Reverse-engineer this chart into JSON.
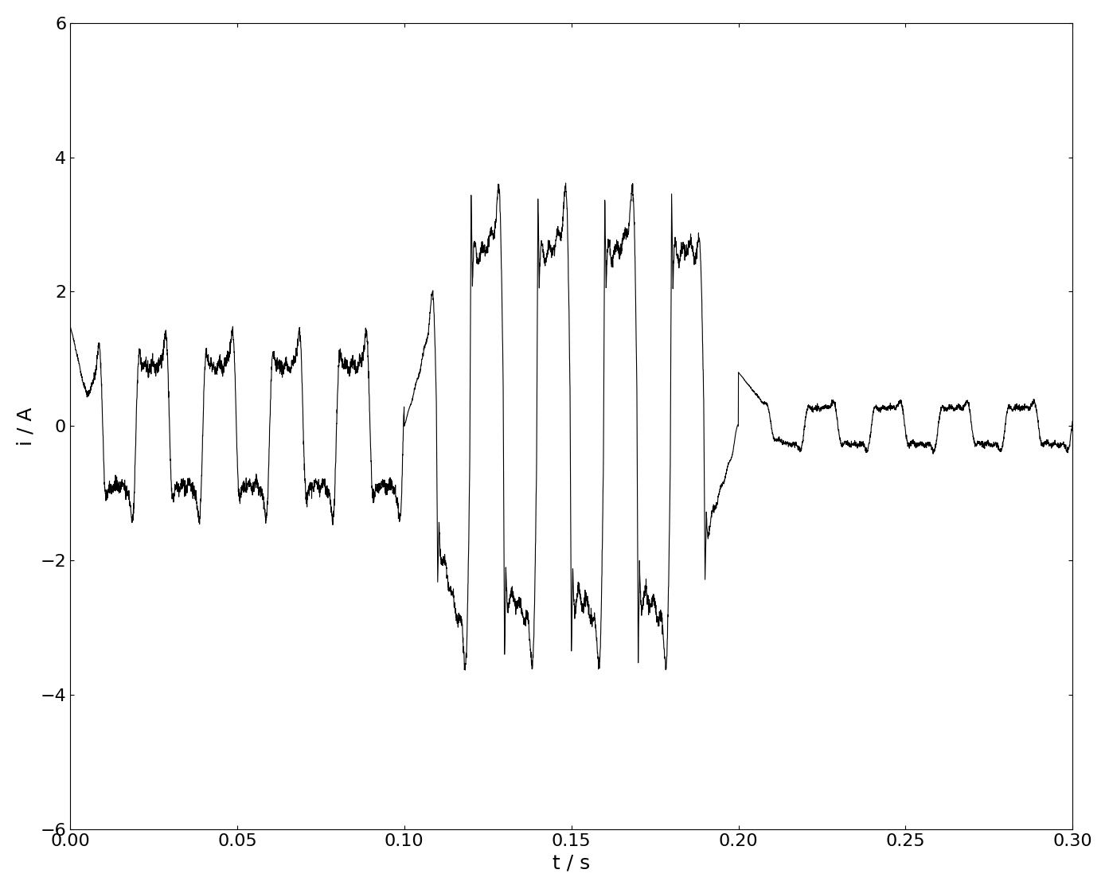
{
  "xlabel": "t / s",
  "ylabel": "i / A",
  "xlim": [
    0,
    0.3
  ],
  "ylim": [
    -6,
    6
  ],
  "xticks": [
    0,
    0.05,
    0.1,
    0.15,
    0.2,
    0.25,
    0.3
  ],
  "yticks": [
    -6,
    -4,
    -2,
    0,
    2,
    4,
    6
  ],
  "line_color": "#000000",
  "line_width": 0.8,
  "background_color": "#ffffff",
  "xlabel_fontsize": 18,
  "ylabel_fontsize": 18,
  "tick_fontsize": 16
}
